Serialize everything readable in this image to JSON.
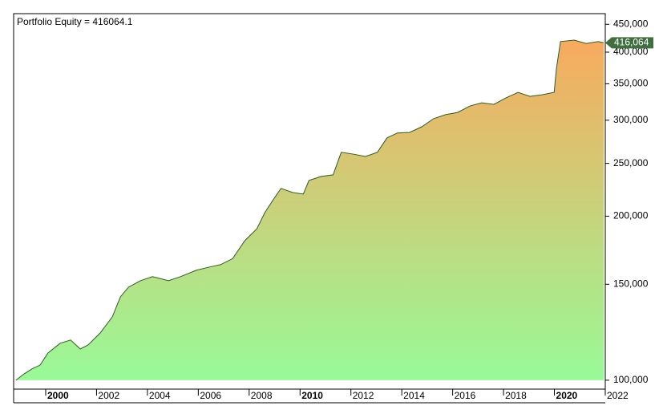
{
  "chart_data": {
    "type": "area",
    "title": "Portfolio Equity = 416064.1",
    "x": [
      1998.83,
      1999.15,
      1999.46,
      1999.78,
      2000.09,
      2000.57,
      2000.98,
      2001.36,
      2001.67,
      2002.15,
      2002.62,
      2002.94,
      2003.26,
      2003.73,
      2004.2,
      2004.83,
      2005.3,
      2005.93,
      2006.41,
      2006.88,
      2007.35,
      2007.83,
      2008.3,
      2008.62,
      2008.93,
      2009.25,
      2009.72,
      2010.13,
      2010.35,
      2010.83,
      2011.3,
      2011.62,
      2012.09,
      2012.57,
      2013.04,
      2013.42,
      2013.83,
      2014.3,
      2014.78,
      2015.25,
      2015.72,
      2016.2,
      2016.67,
      2017.14,
      2017.62,
      2018.09,
      2018.57,
      2019.04,
      2019.51,
      2019.99,
      2020.08,
      2020.24,
      2020.78,
      2021.25,
      2021.72,
      2021.94
    ],
    "values": [
      100000,
      102700,
      104900,
      106600,
      112200,
      116900,
      118500,
      114100,
      116100,
      122200,
      130700,
      142300,
      148200,
      152300,
      154900,
      152300,
      154900,
      159200,
      161200,
      163000,
      167200,
      180400,
      189600,
      203200,
      213900,
      224900,
      221000,
      219600,
      232600,
      236600,
      238200,
      262000,
      260000,
      257400,
      262000,
      278500,
      284300,
      284900,
      291700,
      302000,
      307200,
      310100,
      318500,
      322900,
      320800,
      329600,
      337500,
      331800,
      334100,
      337500,
      373500,
      418300,
      420800,
      414900,
      418300,
      416064.1
    ],
    "value_labels": [
      null,
      null,
      null,
      null,
      null,
      null,
      null,
      null,
      null,
      null,
      null,
      null,
      null,
      null,
      null,
      null,
      null,
      null,
      null,
      null,
      null,
      null,
      null,
      null,
      null,
      null,
      null,
      null,
      null,
      null,
      null,
      null,
      null,
      null,
      null,
      null,
      null,
      null,
      null,
      null,
      null,
      null,
      null,
      null,
      null,
      null,
      null,
      null,
      null,
      null,
      null,
      null,
      null,
      null,
      null,
      "416,064"
    ],
    "line_color": "#2e5e1e",
    "fill_top_color": "#f8aa5e",
    "fill_bottom_color": "#98fa98",
    "label_color": "#3f6f3f",
    "log_scale": true,
    "xlim": [
      1998.74,
      2022
    ],
    "xticks": [
      2000,
      2002,
      2004,
      2006,
      2008,
      2010,
      2012,
      2014,
      2016,
      2018,
      2020,
      2022
    ],
    "ylim": [
      96300,
      470700
    ],
    "yticks": [
      {
        "value": 100000,
        "label": "100,000"
      },
      {
        "value": 150000,
        "label": "150,000"
      },
      {
        "value": 200000,
        "label": "200,000"
      },
      {
        "value": 250000,
        "label": "250,000"
      },
      {
        "value": 300000,
        "label": "300,000"
      },
      {
        "value": 350000,
        "label": "350,000"
      },
      {
        "value": 400000,
        "label": "400,000"
      },
      {
        "value": 450000,
        "label": "450,000"
      }
    ]
  }
}
